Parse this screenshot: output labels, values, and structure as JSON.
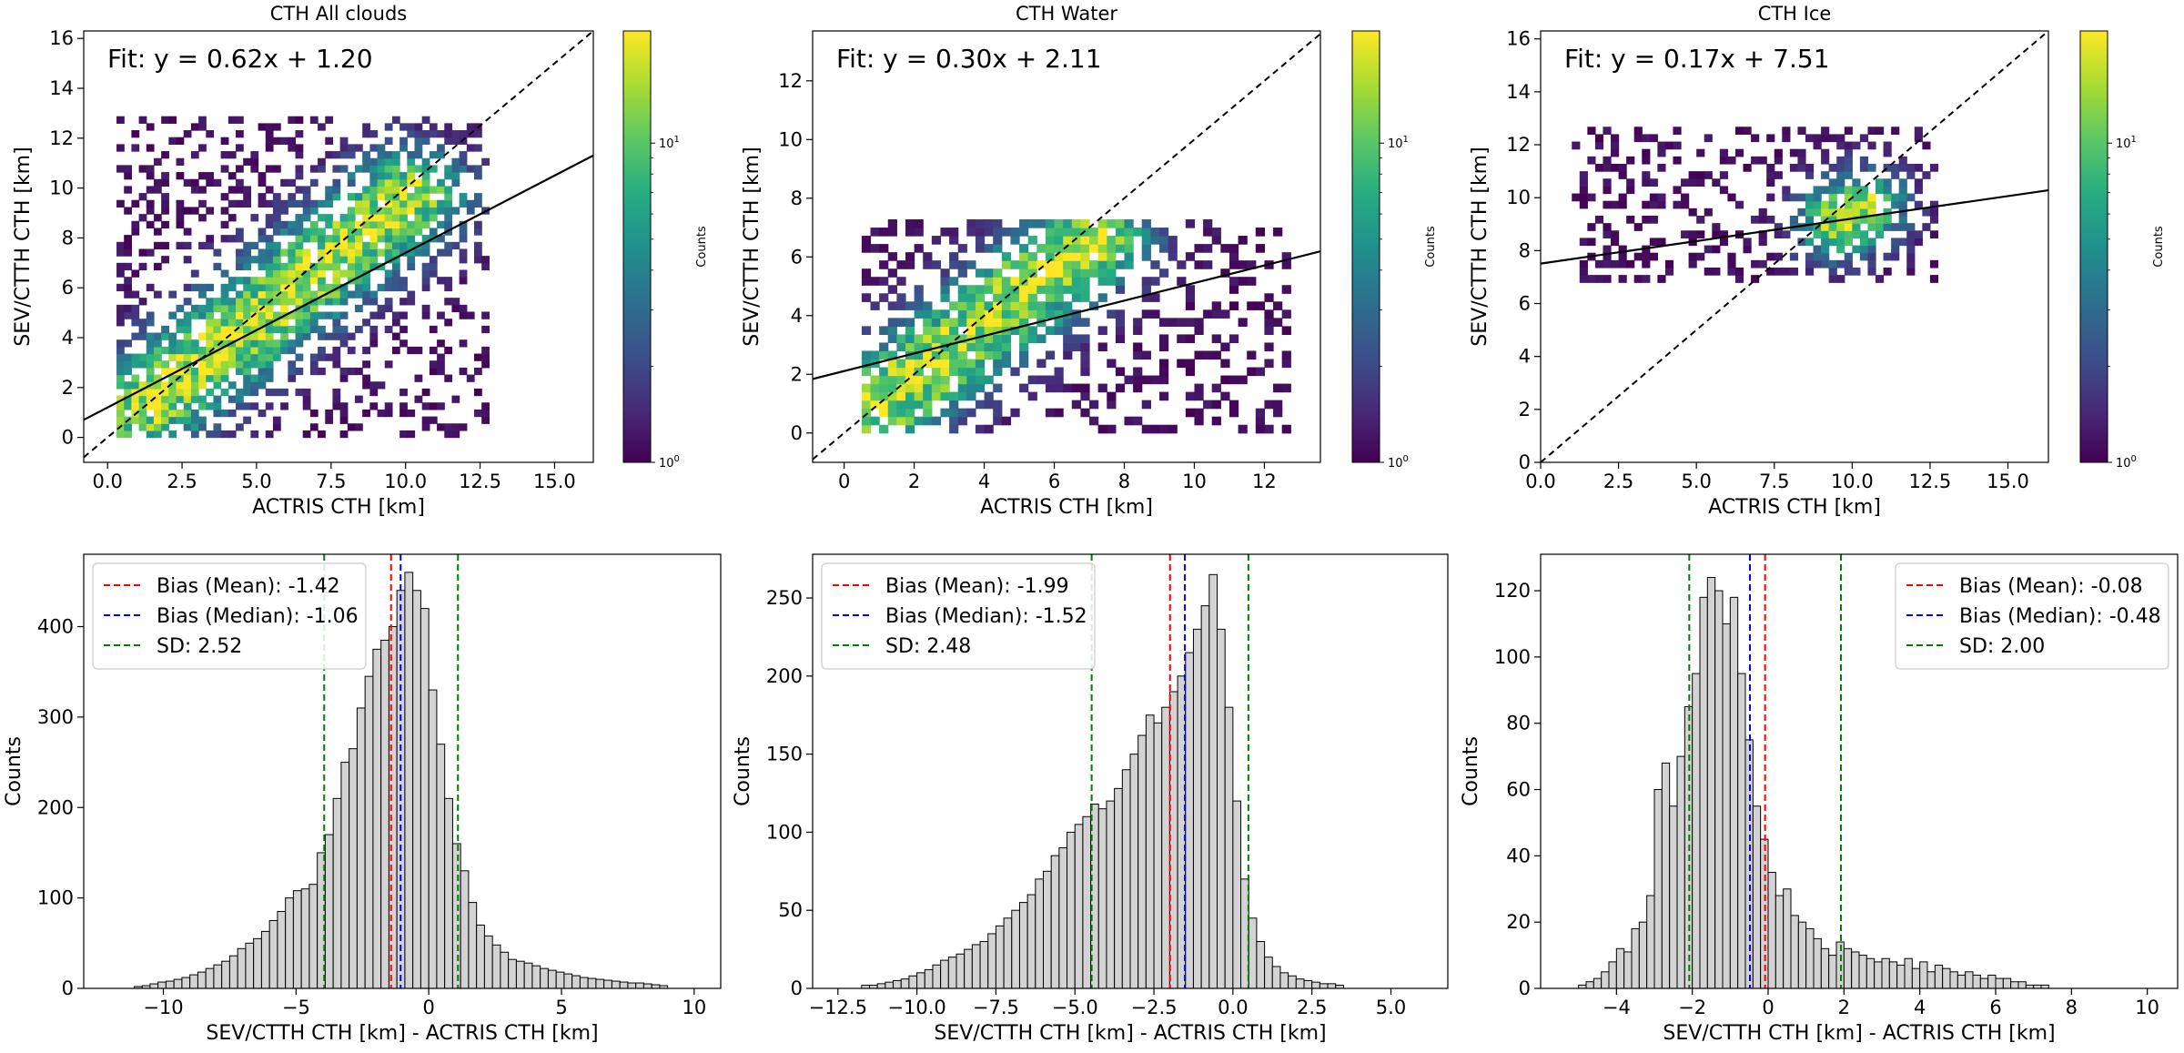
{
  "figure": {
    "cmap_low": "#440154",
    "cmap_mid": "#21918c",
    "cmap_high": "#fde725",
    "fit_color": "#000000",
    "hist_fill": "#d3d3d3",
    "mean_color": "#ff0000",
    "median_color": "#0000ff",
    "sd_color": "#008000"
  },
  "chart_data": [
    {
      "type": "heatmap",
      "title": "CTH All clouds",
      "xlabel": "ACTRIS CTH [km]",
      "ylabel": "SEV/CTTH CTH [km]",
      "xlim": [
        -0.8,
        16.3
      ],
      "ylim": [
        -1.0,
        16.3
      ],
      "xticks": [
        0.0,
        2.5,
        5.0,
        7.5,
        10.0,
        12.5,
        15.0
      ],
      "xtick_labels": [
        "0.0",
        "2.5",
        "5.0",
        "7.5",
        "10.0",
        "12.5",
        "15.0"
      ],
      "yticks": [
        0,
        2,
        4,
        6,
        8,
        10,
        12,
        14,
        16
      ],
      "ytick_labels": [
        "0",
        "2",
        "4",
        "6",
        "8",
        "10",
        "12",
        "14",
        "16"
      ],
      "fit_label": "Fit: y = 0.62x + 1.20",
      "fit": {
        "slope": 0.62,
        "intercept": 1.2
      },
      "one_to_one_line": true,
      "density_core": {
        "ax": 1.0,
        "ay": 1.0,
        "bx": 10.0,
        "by": 9.5,
        "spread": 1.4
      },
      "point_range": {
        "x": [
          0.3,
          12.6
        ],
        "y": [
          0.0,
          12.6
        ]
      },
      "colorbar": {
        "label": "Counts",
        "scale": "log",
        "tick_labels": [
          "10^0",
          "10^1"
        ]
      }
    },
    {
      "type": "heatmap",
      "title": "CTH Water",
      "xlabel": "ACTRIS CTH [km]",
      "ylabel": "SEV/CTTH CTH [km]",
      "xlim": [
        -0.9,
        13.6
      ],
      "ylim": [
        -1.0,
        13.7
      ],
      "xticks": [
        0,
        2,
        4,
        6,
        8,
        10,
        12
      ],
      "xtick_labels": [
        "0",
        "2",
        "4",
        "6",
        "8",
        "10",
        "12"
      ],
      "yticks": [
        0,
        2,
        4,
        6,
        8,
        10,
        12
      ],
      "ytick_labels": [
        "0",
        "2",
        "4",
        "6",
        "8",
        "10",
        "12"
      ],
      "fit_label": "Fit: y = 0.30x + 2.11",
      "fit": {
        "slope": 0.3,
        "intercept": 2.11
      },
      "one_to_one_line": true,
      "density_core": {
        "ax": 0.8,
        "ay": 0.8,
        "bx": 7.0,
        "by": 6.5,
        "spread": 1.2
      },
      "point_range": {
        "x": [
          0.5,
          12.5
        ],
        "y": [
          0.0,
          7.2
        ]
      },
      "colorbar": {
        "label": "Counts",
        "scale": "log",
        "tick_labels": [
          "10^0",
          "10^1"
        ]
      }
    },
    {
      "type": "heatmap",
      "title": "CTH Ice",
      "xlabel": "ACTRIS CTH [km]",
      "ylabel": "SEV/CTTH CTH [km]",
      "xlim": [
        0.0,
        16.3
      ],
      "ylim": [
        0.0,
        16.3
      ],
      "xticks": [
        0.0,
        2.5,
        5.0,
        7.5,
        10.0,
        12.5,
        15.0
      ],
      "xtick_labels": [
        "0.0",
        "2.5",
        "5.0",
        "7.5",
        "10.0",
        "12.5",
        "15.0"
      ],
      "yticks": [
        0,
        2,
        4,
        6,
        8,
        10,
        12,
        14,
        16
      ],
      "ytick_labels": [
        "0",
        "2",
        "4",
        "6",
        "8",
        "10",
        "12",
        "14",
        "16"
      ],
      "fit_label": "Fit: y = 0.17x + 7.51",
      "fit": {
        "slope": 0.17,
        "intercept": 7.51
      },
      "one_to_one_line": true,
      "density_core": {
        "ax": 9.5,
        "ay": 9.0,
        "bx": 10.2,
        "by": 9.5,
        "spread": 1.0
      },
      "point_range": {
        "x": [
          1.0,
          12.6
        ],
        "y": [
          6.8,
          12.6
        ]
      },
      "colorbar": {
        "label": "Counts",
        "scale": "log",
        "tick_labels": [
          "10^0",
          "10^1"
        ]
      }
    },
    {
      "type": "bar",
      "subtype": "histogram",
      "xlabel": "SEV/CTTH CTH [km] - ACTRIS CTH [km]",
      "ylabel": "Counts",
      "xlim": [
        -13.0,
        11.0
      ],
      "ylim": [
        0,
        480
      ],
      "xticks": [
        -10,
        -5,
        0,
        5,
        10
      ],
      "xtick_labels": [
        "−10",
        "−5",
        "0",
        "5",
        "10"
      ],
      "yticks": [
        0,
        100,
        200,
        300,
        400
      ],
      "ytick_labels": [
        "0",
        "100",
        "200",
        "300",
        "400"
      ],
      "bins": {
        "start": -11.1,
        "width": 0.3,
        "counts": [
          2,
          3,
          5,
          7,
          8,
          10,
          12,
          15,
          18,
          22,
          26,
          30,
          36,
          44,
          50,
          55,
          63,
          75,
          85,
          100,
          108,
          110,
          115,
          150,
          170,
          210,
          250,
          265,
          310,
          345,
          375,
          385,
          400,
          440,
          460,
          440,
          420,
          330,
          270,
          210,
          160,
          130,
          95,
          70,
          58,
          48,
          40,
          32,
          30,
          28,
          25,
          22,
          20,
          18,
          16,
          14,
          12,
          11,
          10,
          9,
          8,
          7,
          6,
          6,
          5,
          4,
          3
        ]
      },
      "lines": [
        {
          "name": "Bias (Mean): -1.42",
          "x": -1.42,
          "style": "mean"
        },
        {
          "name": "Bias (Median): -1.06",
          "x": -1.06,
          "style": "median"
        },
        {
          "name": "SD: 2.52",
          "x": [
            -3.94,
            1.1
          ],
          "style": "sd"
        }
      ],
      "legend_position": "top-left"
    },
    {
      "type": "bar",
      "subtype": "histogram",
      "xlabel": "SEV/CTTH CTH [km] - ACTRIS CTH [km]",
      "ylabel": "Counts",
      "xlim": [
        -13.3,
        6.8
      ],
      "ylim": [
        0,
        278
      ],
      "xticks": [
        -12.5,
        -10.0,
        -7.5,
        -5.0,
        -2.5,
        0.0,
        2.5,
        5.0
      ],
      "xtick_labels": [
        "−12.5",
        "−10.0",
        "−7.5",
        "−5.0",
        "−2.5",
        "0.0",
        "2.5",
        "5.0"
      ],
      "yticks": [
        0,
        50,
        100,
        150,
        200,
        250
      ],
      "ytick_labels": [
        "0",
        "50",
        "100",
        "150",
        "200",
        "250"
      ],
      "bins": {
        "start": -11.75,
        "width": 0.25,
        "counts": [
          2,
          2,
          3,
          4,
          5,
          6,
          8,
          10,
          12,
          15,
          18,
          20,
          22,
          25,
          28,
          30,
          35,
          40,
          45,
          50,
          55,
          60,
          70,
          75,
          85,
          90,
          100,
          105,
          110,
          118,
          115,
          120,
          128,
          140,
          150,
          162,
          175,
          170,
          180,
          190,
          200,
          215,
          230,
          245,
          265,
          230,
          180,
          120,
          70,
          45,
          30,
          20,
          14,
          10,
          8,
          6,
          5,
          4,
          3,
          3,
          2
        ]
      },
      "lines": [
        {
          "name": "Bias (Mean): -1.99",
          "x": -1.99,
          "style": "mean"
        },
        {
          "name": "Bias (Median): -1.52",
          "x": -1.52,
          "style": "median"
        },
        {
          "name": "SD: 2.48",
          "x": [
            -4.47,
            0.49
          ],
          "style": "sd"
        }
      ],
      "legend_position": "top-left"
    },
    {
      "type": "bar",
      "subtype": "histogram",
      "xlabel": "SEV/CTTH CTH [km] - ACTRIS CTH [km]",
      "ylabel": "Counts",
      "xlim": [
        -6.0,
        10.8
      ],
      "ylim": [
        0,
        131
      ],
      "xticks": [
        -4,
        -2,
        0,
        2,
        4,
        6,
        8,
        10
      ],
      "xtick_labels": [
        "−4",
        "−2",
        "0",
        "2",
        "4",
        "6",
        "8",
        "10"
      ],
      "yticks": [
        0,
        20,
        40,
        60,
        80,
        100,
        120
      ],
      "ytick_labels": [
        "0",
        "20",
        "40",
        "60",
        "80",
        "100",
        "120"
      ],
      "bins": {
        "start": -5.0,
        "width": 0.2,
        "counts": [
          1,
          2,
          3,
          5,
          8,
          12,
          11,
          18,
          20,
          28,
          60,
          68,
          55,
          70,
          85,
          95,
          118,
          124,
          120,
          110,
          118,
          95,
          75,
          55,
          45,
          35,
          28,
          30,
          22,
          20,
          18,
          15,
          12,
          10,
          14,
          12,
          11,
          10,
          9,
          8,
          9,
          8,
          7,
          9,
          6,
          8,
          5,
          7,
          6,
          5,
          4,
          5,
          4,
          3,
          4,
          3,
          3,
          2,
          2,
          1,
          1,
          1
        ]
      },
      "lines": [
        {
          "name": "Bias (Mean): -0.08",
          "x": -0.08,
          "style": "mean"
        },
        {
          "name": "Bias (Median): -0.48",
          "x": -0.48,
          "style": "median"
        },
        {
          "name": "SD: 2.00",
          "x": [
            -2.08,
            1.92
          ],
          "style": "sd"
        }
      ],
      "legend_position": "top-right"
    }
  ]
}
